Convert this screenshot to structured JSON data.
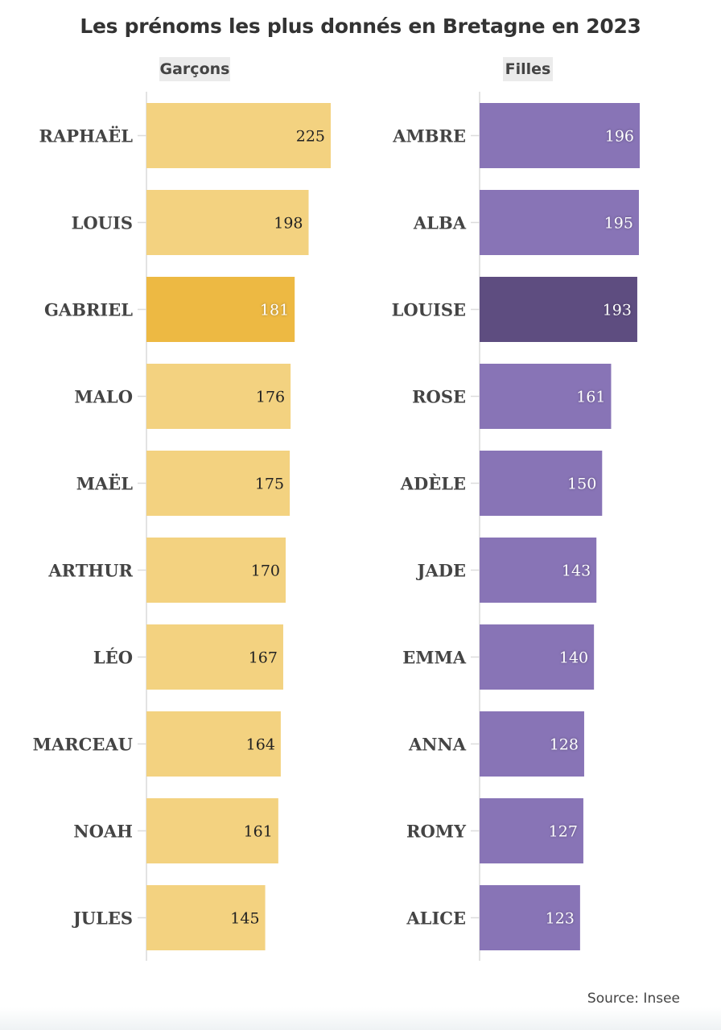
{
  "chart_data": {
    "type": "bar",
    "title": "Les prénoms les plus donnés en Bretagne en 2023",
    "source": "Source: Insee",
    "panels": [
      {
        "name": "Garçons",
        "color": "#f3d280",
        "highlight_color": "#edb943",
        "highlight_index": 2,
        "label_color_light": "#ffffff",
        "label_color_dark": "#222222",
        "categories": [
          "RAPHAËL",
          "LOUIS",
          "GABRIEL",
          "MALO",
          "MAËL",
          "ARTHUR",
          "LÉO",
          "MARCEAU",
          "NOAH",
          "JULES"
        ],
        "values": [
          225,
          198,
          181,
          176,
          175,
          170,
          167,
          164,
          161,
          145
        ]
      },
      {
        "name": "Filles",
        "color": "#8874b6",
        "highlight_color": "#5e4d80",
        "highlight_index": 2,
        "label_color_light": "#ffffff",
        "label_color_dark": "#ffffff",
        "categories": [
          "AMBRE",
          "ALBA",
          "LOUISE",
          "ROSE",
          "ADÈLE",
          "JADE",
          "EMMA",
          "ANNA",
          "ROMY",
          "ALICE"
        ],
        "values": [
          196,
          195,
          193,
          161,
          150,
          143,
          140,
          128,
          127,
          123
        ]
      }
    ]
  }
}
